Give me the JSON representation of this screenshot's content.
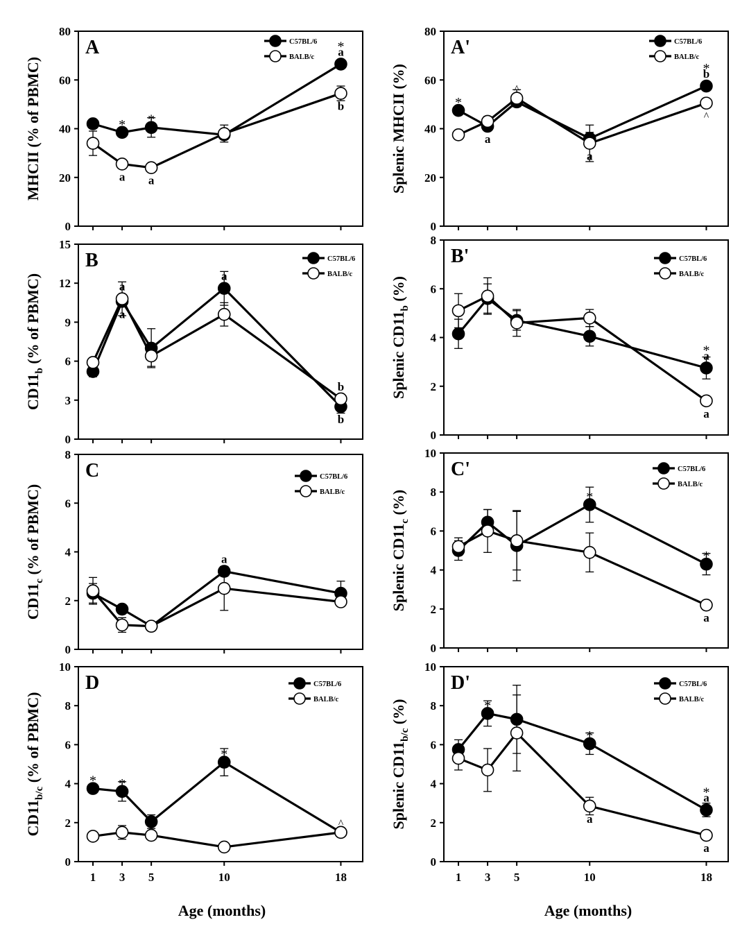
{
  "chart_data": [
    {
      "id": "A",
      "panel_label": "A",
      "type": "line",
      "ylabel_main": "MHCII (% of PBMC)",
      "ylabel_parts": [
        "MHCII (% of PBMC)"
      ],
      "ylim": [
        0,
        80
      ],
      "yticks": [
        "0",
        "20",
        "40",
        "60",
        "80"
      ],
      "x": [
        1,
        3,
        5,
        10,
        18
      ],
      "series": [
        {
          "name": "C57BL/6",
          "values": [
            42,
            38.5,
            40.5,
            37.5,
            66.5
          ],
          "errors": [
            0,
            1.5,
            4,
            0,
            1
          ]
        },
        {
          "name": "BALB/c",
          "values": [
            34,
            25.5,
            24,
            38,
            54.5
          ],
          "errors": [
            5,
            1,
            1,
            3.5,
            3
          ]
        }
      ],
      "annotations": [
        {
          "x": 3,
          "y": 38.5,
          "pos": "above",
          "text": "*",
          "kind": "star"
        },
        {
          "x": 5,
          "y": 40.5,
          "pos": "above",
          "text": "*",
          "kind": "star"
        },
        {
          "x": 18,
          "y": 66.5,
          "pos": "above",
          "text": "a",
          "kind": "letter"
        },
        {
          "x": 18,
          "y": 66.5,
          "pos": "above2",
          "text": "*",
          "kind": "star"
        },
        {
          "x": 3,
          "y": 25.5,
          "pos": "below",
          "text": "a",
          "kind": "letter"
        },
        {
          "x": 5,
          "y": 24,
          "pos": "below",
          "text": "a",
          "kind": "letter"
        },
        {
          "x": 18,
          "y": 54.5,
          "pos": "below",
          "text": "b",
          "kind": "letter"
        }
      ]
    },
    {
      "id": "A2",
      "panel_label": "A'",
      "type": "line",
      "ylabel_main": "Splenic MHCII (%)",
      "ylabel_parts": [
        "Splenic MHCII (%)"
      ],
      "ylim": [
        0,
        80
      ],
      "yticks": [
        "0",
        "20",
        "40",
        "60",
        "80"
      ],
      "x": [
        1,
        3,
        5,
        10,
        18
      ],
      "series": [
        {
          "name": "C57BL/6",
          "values": [
            47.5,
            41,
            51,
            36,
            57.5
          ],
          "errors": [
            0,
            0,
            0,
            2.5,
            0
          ]
        },
        {
          "name": "BALB/c",
          "values": [
            37.5,
            43,
            52.5,
            34,
            50.5
          ],
          "errors": [
            0,
            2,
            3.5,
            7.5,
            0
          ]
        }
      ],
      "annotations": [
        {
          "x": 1,
          "y": 47.5,
          "pos": "above",
          "text": "*",
          "kind": "star"
        },
        {
          "x": 5,
          "y": 52.5,
          "pos": "above",
          "text": "^",
          "kind": "caret"
        },
        {
          "x": 18,
          "y": 57.5,
          "pos": "above",
          "text": "b",
          "kind": "letter"
        },
        {
          "x": 18,
          "y": 57.5,
          "pos": "above2",
          "text": "*",
          "kind": "star"
        },
        {
          "x": 3,
          "y": 41,
          "pos": "below",
          "text": "a",
          "kind": "letter"
        },
        {
          "x": 10,
          "y": 34,
          "pos": "below",
          "text": "a",
          "kind": "letter"
        },
        {
          "x": 18,
          "y": 50.5,
          "pos": "below",
          "text": "^",
          "kind": "caret"
        }
      ]
    },
    {
      "id": "B",
      "panel_label": "B",
      "type": "line",
      "ylabel_main": "CD11",
      "ylabel_parts": [
        "CD11",
        "b",
        " (% of PBMC)"
      ],
      "ylim": [
        0,
        15
      ],
      "yticks": [
        "0",
        "3",
        "6",
        "9",
        "12",
        "15"
      ],
      "x": [
        1,
        3,
        5,
        10,
        18
      ],
      "series": [
        {
          "name": "C57BL/6",
          "values": [
            5.2,
            10.6,
            7.0,
            11.6,
            2.5
          ],
          "errors": [
            0.4,
            0.4,
            1.5,
            1.3,
            0.5
          ]
        },
        {
          "name": "BALB/c",
          "values": [
            5.9,
            10.8,
            6.4,
            9.6,
            3.1
          ],
          "errors": [
            0.3,
            1.3,
            0.8,
            0.9,
            0.3
          ]
        }
      ],
      "annotations": [
        {
          "x": 3,
          "y": 10.8,
          "pos": "above",
          "text": "a",
          "kind": "letter"
        },
        {
          "x": 10,
          "y": 11.6,
          "pos": "above",
          "text": "a",
          "kind": "letter"
        },
        {
          "x": 18,
          "y": 3.1,
          "pos": "above",
          "text": "b",
          "kind": "letter"
        },
        {
          "x": 3,
          "y": 10.6,
          "pos": "below",
          "text": "a",
          "kind": "letter"
        },
        {
          "x": 18,
          "y": 2.5,
          "pos": "below",
          "text": "b",
          "kind": "letter"
        }
      ]
    },
    {
      "id": "B2",
      "panel_label": "B'",
      "type": "line",
      "ylabel_main": "Splenic CD11",
      "ylabel_parts": [
        "Splenic CD11",
        "b",
        " (%)"
      ],
      "ylim": [
        0,
        8
      ],
      "yticks": [
        "0",
        "2",
        "4",
        "6",
        "8"
      ],
      "x": [
        1,
        3,
        5,
        10,
        18
      ],
      "series": [
        {
          "name": "C57BL/6",
          "values": [
            4.15,
            5.6,
            4.7,
            4.05,
            2.75
          ],
          "errors": [
            0.6,
            0.6,
            0.4,
            0.4,
            0.45
          ]
        },
        {
          "name": "BALB/c",
          "values": [
            5.1,
            5.7,
            4.6,
            4.8,
            1.4
          ],
          "errors": [
            0.7,
            0.75,
            0.55,
            0.35,
            0
          ]
        }
      ],
      "annotations": [
        {
          "x": 18,
          "y": 2.75,
          "pos": "above",
          "text": "a",
          "kind": "letter"
        },
        {
          "x": 18,
          "y": 2.75,
          "pos": "above2",
          "text": "*",
          "kind": "star"
        },
        {
          "x": 18,
          "y": 1.4,
          "pos": "below",
          "text": "a",
          "kind": "letter"
        }
      ]
    },
    {
      "id": "C",
      "panel_label": "C",
      "type": "line",
      "ylabel_main": "CD11",
      "ylabel_parts": [
        "CD11",
        "c",
        " (% of PBMC)"
      ],
      "ylim": [
        0,
        8
      ],
      "yticks": [
        "0",
        "2",
        "4",
        "6",
        "8"
      ],
      "x": [
        1,
        3,
        5,
        10,
        18
      ],
      "series": [
        {
          "name": "C57BL/6",
          "values": [
            2.3,
            1.65,
            0.95,
            3.2,
            2.3
          ],
          "errors": [
            0.4,
            0,
            0,
            0.2,
            0.5
          ]
        },
        {
          "name": "BALB/c",
          "values": [
            2.4,
            1.0,
            0.95,
            2.5,
            1.95
          ],
          "errors": [
            0.55,
            0.3,
            0,
            0.9,
            0
          ]
        }
      ],
      "annotations": [
        {
          "x": 10,
          "y": 3.2,
          "pos": "above",
          "text": "a",
          "kind": "letter"
        }
      ]
    },
    {
      "id": "C2",
      "panel_label": "C'",
      "type": "line",
      "ylabel_main": "Splenic CD11",
      "ylabel_parts": [
        "Splenic CD11",
        "c",
        " (%)"
      ],
      "ylim": [
        0,
        10
      ],
      "yticks": [
        "0",
        "2",
        "4",
        "6",
        "8",
        "10"
      ],
      "x": [
        1,
        3,
        5,
        10,
        18
      ],
      "series": [
        {
          "name": "C57BL/6",
          "values": [
            5.0,
            6.45,
            5.25,
            7.35,
            4.3
          ],
          "errors": [
            0.5,
            0.65,
            1.8,
            0.9,
            0.55
          ]
        },
        {
          "name": "BALB/c",
          "values": [
            5.2,
            6.0,
            5.5,
            4.9,
            2.2
          ],
          "errors": [
            0.45,
            1.1,
            1.5,
            1.0,
            0
          ]
        }
      ],
      "annotations": [
        {
          "x": 10,
          "y": 7.35,
          "pos": "above",
          "text": "*",
          "kind": "star"
        },
        {
          "x": 18,
          "y": 4.3,
          "pos": "above",
          "text": "*",
          "kind": "star"
        },
        {
          "x": 18,
          "y": 2.2,
          "pos": "below",
          "text": "a",
          "kind": "letter"
        }
      ]
    },
    {
      "id": "D",
      "panel_label": "D",
      "type": "line",
      "ylabel_main": "CD11",
      "ylabel_parts": [
        "CD11",
        "b/c",
        " (% of PBMC)"
      ],
      "ylim": [
        0,
        10
      ],
      "yticks": [
        "0",
        "2",
        "4",
        "6",
        "8",
        "10"
      ],
      "x": [
        1,
        3,
        5,
        10,
        18
      ],
      "series": [
        {
          "name": "C57BL/6",
          "values": [
            3.75,
            3.6,
            2.05,
            5.1,
            1.5
          ],
          "errors": [
            0,
            0.5,
            0.35,
            0.7,
            0
          ]
        },
        {
          "name": "BALB/c",
          "values": [
            1.3,
            1.5,
            1.35,
            0.75,
            1.5
          ],
          "errors": [
            0,
            0.35,
            0,
            0,
            0
          ]
        }
      ],
      "annotations": [
        {
          "x": 1,
          "y": 3.75,
          "pos": "above",
          "text": "*",
          "kind": "star"
        },
        {
          "x": 3,
          "y": 3.6,
          "pos": "above",
          "text": "*",
          "kind": "star"
        },
        {
          "x": 10,
          "y": 5.1,
          "pos": "above",
          "text": "*",
          "kind": "star"
        },
        {
          "x": 18,
          "y": 1.5,
          "pos": "above",
          "text": "^",
          "kind": "caret"
        }
      ]
    },
    {
      "id": "D2",
      "panel_label": "D'",
      "type": "line",
      "ylabel_main": "Splenic CD11",
      "ylabel_parts": [
        "Splenic CD11",
        "b/c",
        " (%)"
      ],
      "ylim": [
        0,
        10
      ],
      "yticks": [
        "0",
        "2",
        "4",
        "6",
        "8",
        "10"
      ],
      "x": [
        1,
        3,
        5,
        10,
        18
      ],
      "series": [
        {
          "name": "C57BL/6",
          "values": [
            5.75,
            7.6,
            7.3,
            6.05,
            2.65
          ],
          "errors": [
            0.5,
            0.65,
            1.75,
            0.55,
            0.35
          ]
        },
        {
          "name": "BALB/c",
          "values": [
            5.3,
            4.7,
            6.6,
            2.85,
            1.35
          ],
          "errors": [
            0.6,
            1.1,
            1.95,
            0.45,
            0
          ]
        }
      ],
      "annotations": [
        {
          "x": 3,
          "y": 7.6,
          "pos": "above",
          "text": "*",
          "kind": "star"
        },
        {
          "x": 10,
          "y": 6.05,
          "pos": "above",
          "text": "*",
          "kind": "star"
        },
        {
          "x": 18,
          "y": 2.65,
          "pos": "above",
          "text": "a",
          "kind": "letter"
        },
        {
          "x": 18,
          "y": 2.65,
          "pos": "above2",
          "text": "*",
          "kind": "star"
        },
        {
          "x": 10,
          "y": 2.85,
          "pos": "below",
          "text": "a",
          "kind": "letter"
        },
        {
          "x": 18,
          "y": 1.35,
          "pos": "below",
          "text": "a",
          "kind": "letter"
        }
      ]
    }
  ],
  "xaxis": {
    "label": "Age (months)",
    "tick_labels": [
      "1",
      "3",
      "5",
      "10",
      "18"
    ],
    "ticks": [
      1,
      3,
      5,
      10,
      18
    ],
    "xlim": [
      0,
      19.5
    ]
  },
  "colors": {
    "filled": "#000000",
    "open": "#ffffff",
    "axis": "#000000"
  }
}
